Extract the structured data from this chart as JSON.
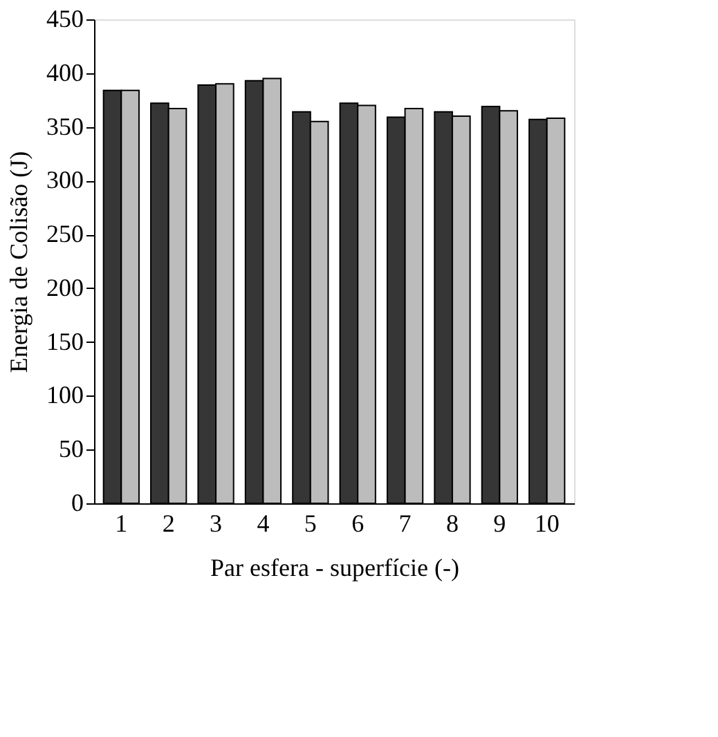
{
  "chart_data": {
    "type": "bar",
    "xlabel": "Par esfera - superfície (-)",
    "ylabel": "Energia de Colisão (J)",
    "categories": [
      "1",
      "2",
      "3",
      "4",
      "5",
      "6",
      "7",
      "8",
      "9",
      "10"
    ],
    "series": [
      {
        "color": "#363636",
        "values": [
          384,
          372,
          389,
          393,
          364,
          372,
          359,
          364,
          369,
          357
        ]
      },
      {
        "color": "#bcbcbc",
        "values": [
          384,
          367,
          390,
          395,
          355,
          370,
          367,
          360,
          365,
          358
        ]
      }
    ],
    "ylim": [
      0,
      450
    ],
    "yticks": [
      0,
      50,
      100,
      150,
      200,
      250,
      300,
      350,
      400,
      450
    ],
    "grid": false,
    "legend": false
  }
}
